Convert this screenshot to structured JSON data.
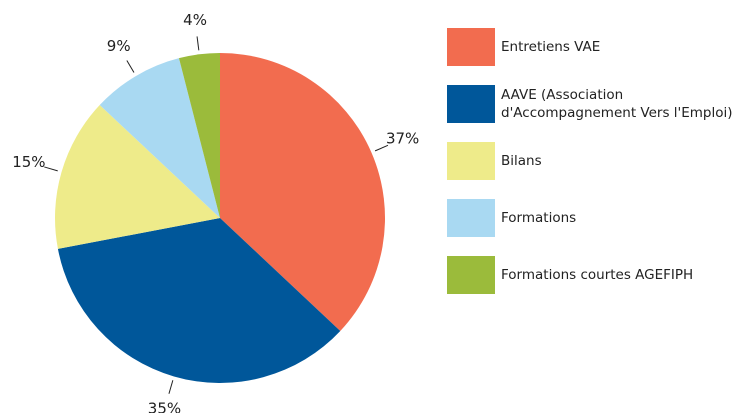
{
  "chart_data": {
    "type": "pie",
    "categories": [
      "Entretiens VAE",
      "AAVE (Association\nd'Accompagnement Vers l'Emploi)",
      "Bilans",
      "Formations",
      "Formations courtes AGEFIPH"
    ],
    "values": [
      37,
      35,
      15,
      9,
      4
    ],
    "value_labels": [
      "37%",
      "35%",
      "15%",
      "9%",
      "4%"
    ],
    "colors": [
      "#f26c4f",
      "#00579a",
      "#eeeb8a",
      "#a9d9f2",
      "#9bbb3b"
    ],
    "legend": "right"
  }
}
